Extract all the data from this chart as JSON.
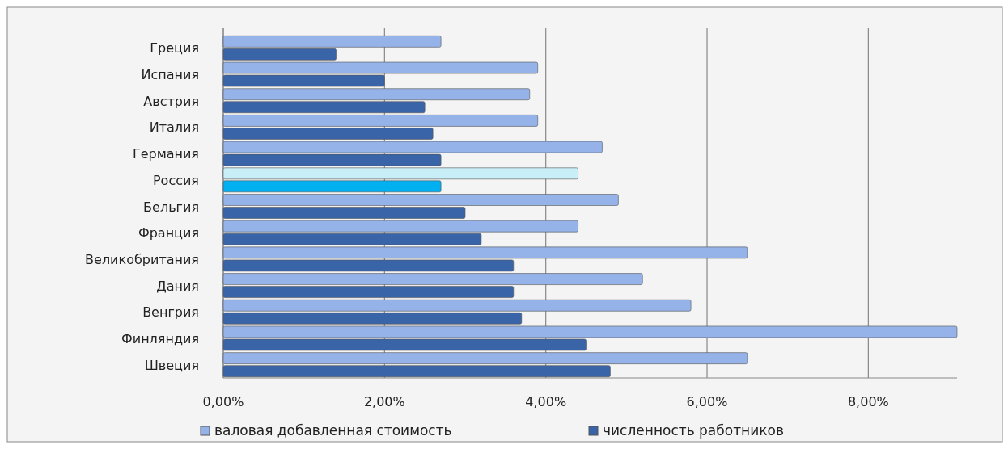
{
  "chart_data": {
    "type": "bar",
    "orientation": "horizontal",
    "categories": [
      "Греция",
      "Испания",
      "Австрия",
      "Италия",
      "Германия",
      "Россия",
      "Бельгия",
      "Франция",
      "Великобритания",
      "Дания",
      "Венгрия",
      "Финляндия",
      "Швеция"
    ],
    "series": [
      {
        "name": "валовая добавленная стоимость",
        "color": "#95b3e8",
        "colors": [
          "#95b3e8",
          "#95b3e8",
          "#95b3e8",
          "#95b3e8",
          "#95b3e8",
          "#c8eef8",
          "#95b3e8",
          "#95b3e8",
          "#95b3e8",
          "#95b3e8",
          "#95b3e8",
          "#95b3e8",
          "#95b3e8"
        ],
        "values": [
          2.7,
          3.9,
          3.8,
          3.9,
          4.7,
          4.4,
          4.9,
          4.4,
          6.5,
          5.2,
          5.8,
          9.1,
          6.5
        ]
      },
      {
        "name": "численность работников",
        "color": "#3a64a8",
        "colors": [
          "#3a64a8",
          "#3a64a8",
          "#3a64a8",
          "#3a64a8",
          "#3a64a8",
          "#00b0f0",
          "#3a64a8",
          "#3a64a8",
          "#3a64a8",
          "#3a64a8",
          "#3a64a8",
          "#3a64a8",
          "#3a64a8"
        ],
        "values": [
          1.4,
          2.0,
          2.5,
          2.6,
          2.7,
          2.7,
          3.0,
          3.2,
          3.6,
          3.6,
          3.7,
          4.5,
          4.8
        ]
      }
    ],
    "xlim": [
      0,
      9.1
    ],
    "xticks": [
      {
        "value": 0,
        "label": "0,00%"
      },
      {
        "value": 2,
        "label": "2,00%"
      },
      {
        "value": 4,
        "label": "4,00%"
      },
      {
        "value": 6,
        "label": "6,00%"
      },
      {
        "value": 8,
        "label": "8,00%"
      }
    ],
    "grid": "x",
    "legend": "bottom"
  }
}
